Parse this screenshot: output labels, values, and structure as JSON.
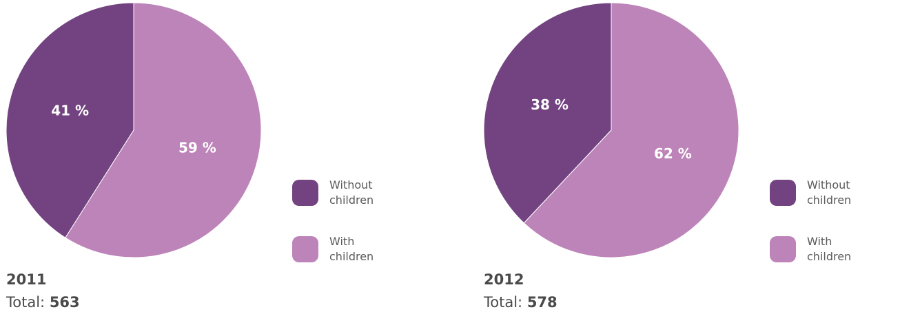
{
  "colors": {
    "without_children": "#724380",
    "with_children": "#bd84b9"
  },
  "chart_data": [
    {
      "type": "pie",
      "title": "2011",
      "total_label": "Total:",
      "total_value": "563",
      "slices": [
        {
          "name": "Without children",
          "value": 41,
          "label": "41 %",
          "color": "#724380"
        },
        {
          "name": "With children",
          "value": 59,
          "label": "59 %",
          "color": "#bd84b9"
        }
      ],
      "legend": [
        {
          "label": "Without\nchildren",
          "color": "#724380"
        },
        {
          "label": "With children",
          "color": "#bd84b9"
        }
      ],
      "legend_position": "right"
    },
    {
      "type": "pie",
      "title": "2012",
      "total_label": "Total:",
      "total_value": "578",
      "slices": [
        {
          "name": "Without children",
          "value": 38,
          "label": "38 %",
          "color": "#724380"
        },
        {
          "name": "With children",
          "value": 62,
          "label": "62 %",
          "color": "#bd84b9"
        }
      ],
      "legend": [
        {
          "label": "Without\nchildren",
          "color": "#724380"
        },
        {
          "label": "With children",
          "color": "#bd84b9"
        }
      ],
      "legend_position": "right"
    }
  ]
}
